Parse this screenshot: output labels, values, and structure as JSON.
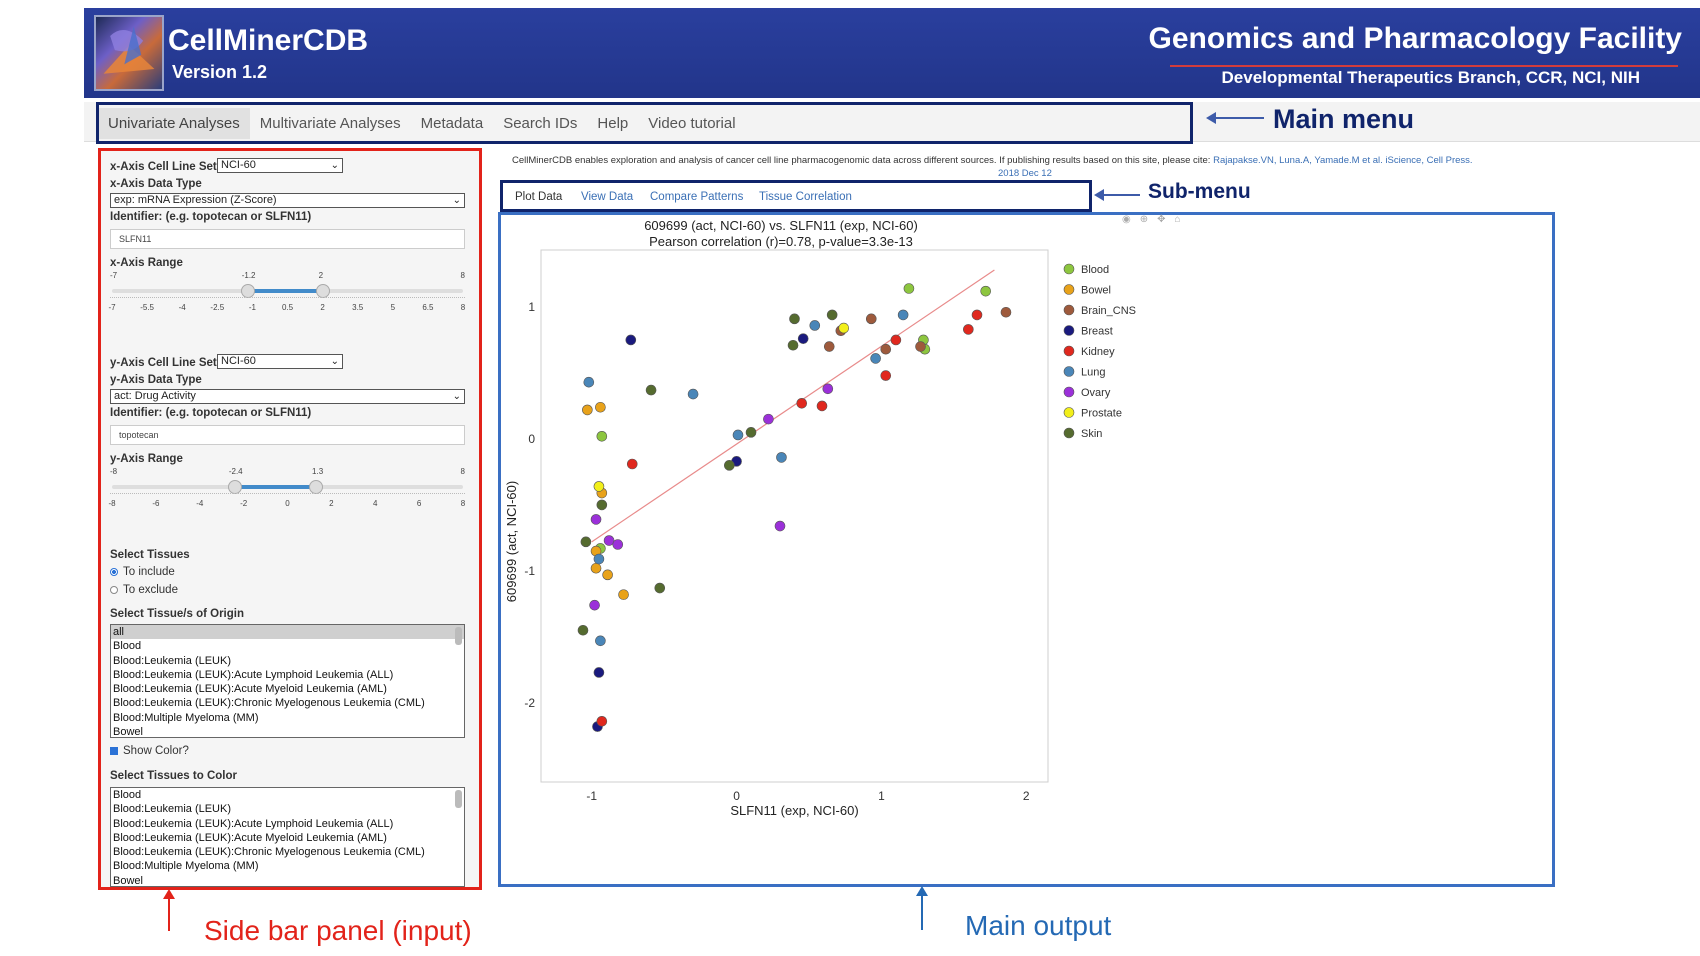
{
  "header": {
    "app_title": "CellMinerCDB",
    "version": "Version 1.2",
    "facility_title": "Genomics and Pharmacology Facility",
    "facility_subtitle": "Developmental Therapeutics Branch, CCR, NCI, NIH"
  },
  "main_menu": {
    "tabs": [
      "Univariate Analyses",
      "Multivariate Analyses",
      "Metadata",
      "Search IDs",
      "Help",
      "Video tutorial"
    ],
    "active_index": 0
  },
  "annotations": {
    "main_menu": "Main menu",
    "sub_menu": "Sub-menu",
    "sidebar": "Side bar panel (input)",
    "main_output": "Main output"
  },
  "sidebar": {
    "x_cellline_label": "x-Axis Cell Line Set",
    "x_cellline_value": "NCI-60",
    "x_datatype_label": "x-Axis Data Type",
    "x_datatype_value": "exp: mRNA Expression (Z-Score)",
    "x_identifier_label": "Identifier: (e.g. topotecan or SLFN11)",
    "x_identifier_value": "SLFN11",
    "x_range_label": "x-Axis Range",
    "x_range": {
      "min": -7,
      "max": 8,
      "low": -1.2,
      "high": 2,
      "min_label": "-7",
      "max_label": "8",
      "low_label": "-1.2",
      "high_label": "2",
      "ticks": [
        "-7",
        "-5.5",
        "-4",
        "-2.5",
        "-1",
        "0.5",
        "2",
        "3.5",
        "5",
        "6.5",
        "8"
      ]
    },
    "y_cellline_label": "y-Axis Cell Line Set",
    "y_cellline_value": "NCI-60",
    "y_datatype_label": "y-Axis Data Type",
    "y_datatype_value": "act: Drug Activity",
    "y_identifier_label": "Identifier: (e.g. topotecan or SLFN11)",
    "y_identifier_value": "topotecan",
    "y_range_label": "y-Axis Range",
    "y_range": {
      "min": -8,
      "max": 8,
      "low": -2.4,
      "high": 1.3,
      "min_label": "-8",
      "max_label": "8",
      "low_label": "-2.4",
      "high_label": "1.3",
      "ticks": [
        "-8",
        "-6",
        "-4",
        "-2",
        "0",
        "2",
        "4",
        "6",
        "8"
      ]
    },
    "select_tissues_label": "Select Tissues",
    "radio_include": "To include",
    "radio_exclude": "To exclude",
    "origin_label": "Select Tissue/s of Origin",
    "origin_items": [
      "all",
      "Blood",
      "Blood:Leukemia (LEUK)",
      "Blood:Leukemia (LEUK):Acute Lymphoid Leukemia (ALL)",
      "Blood:Leukemia (LEUK):Acute Myeloid Leukemia (AML)",
      "Blood:Leukemia (LEUK):Chronic Myelogenous Leukemia (CML)",
      "Blood:Multiple Myeloma (MM)",
      "Bowel"
    ],
    "show_color_label": "Show Color?",
    "color_label": "Select Tissues to Color",
    "color_items": [
      "Blood",
      "Blood:Leukemia (LEUK)",
      "Blood:Leukemia (LEUK):Acute Lymphoid Leukemia (ALL)",
      "Blood:Leukemia (LEUK):Acute Myeloid Leukemia (AML)",
      "Blood:Leukemia (LEUK):Chronic Myelogenous Leukemia (CML)",
      "Blood:Multiple Myeloma (MM)",
      "Bowel"
    ]
  },
  "intro": {
    "text": "CellMinerCDB enables exploration and analysis of cancer cell line pharmacogenomic data across different sources. If publishing results based on this site, please cite: ",
    "citation": "Rajapakse.VN, Luna.A, Yamade.M et al. iScience, Cell Press.",
    "date": "2018 Dec 12"
  },
  "sub_menu": {
    "tabs": [
      "Plot Data",
      "View Data",
      "Compare Patterns",
      "Tissue Correlation"
    ],
    "active_index": 0
  },
  "chart_data": {
    "type": "scatter",
    "title": "609699 (act, NCI-60) vs. SLFN11 (exp, NCI-60)",
    "subtitle": "Pearson correlation (r)=0.78, p-value=3.3e-13",
    "xlabel": "SLFN11 (exp, NCI-60)",
    "ylabel": "609699 (act, NCI-60)",
    "xlim": [
      -1.35,
      2.15
    ],
    "ylim": [
      -2.6,
      1.5
    ],
    "xticks": [
      -1,
      0,
      1,
      2
    ],
    "yticks": [
      -2,
      -1,
      0,
      1
    ],
    "legend_position": "right",
    "trendline": [
      [
        -1.0,
        -0.78
      ],
      [
        1.78,
        1.28
      ]
    ],
    "trendline_color": "#e88b8b",
    "series": [
      {
        "name": "Blood",
        "color": "#8dc63f",
        "points": [
          [
            1.19,
            1.14
          ],
          [
            1.72,
            1.12
          ],
          [
            1.29,
            0.75
          ],
          [
            1.3,
            0.68
          ],
          [
            -0.93,
            0.02
          ],
          [
            -0.94,
            -0.83
          ]
        ]
      },
      {
        "name": "Bowel",
        "color": "#e8a21a",
        "points": [
          [
            -1.03,
            0.22
          ],
          [
            -0.94,
            0.24
          ],
          [
            -0.93,
            -0.41
          ],
          [
            -0.97,
            -0.85
          ],
          [
            -0.97,
            -0.98
          ],
          [
            -0.89,
            -1.03
          ],
          [
            -0.78,
            -1.18
          ]
        ]
      },
      {
        "name": "Brain_CNS",
        "color": "#9e5a3c",
        "points": [
          [
            0.72,
            0.82
          ],
          [
            0.93,
            0.91
          ],
          [
            1.86,
            0.96
          ],
          [
            0.64,
            0.7
          ],
          [
            1.03,
            0.68
          ],
          [
            1.27,
            0.7
          ]
        ]
      },
      {
        "name": "Breast",
        "color": "#1a1a7e",
        "points": [
          [
            -0.73,
            0.75
          ],
          [
            0.46,
            0.76
          ],
          [
            0.0,
            -0.17
          ],
          [
            -0.95,
            -1.77
          ],
          [
            -0.96,
            -2.18
          ]
        ]
      },
      {
        "name": "Kidney",
        "color": "#e0281e",
        "points": [
          [
            1.66,
            0.94
          ],
          [
            1.6,
            0.83
          ],
          [
            1.1,
            0.75
          ],
          [
            1.03,
            0.48
          ],
          [
            0.45,
            0.27
          ],
          [
            0.59,
            0.25
          ],
          [
            -0.72,
            -0.19
          ],
          [
            -0.93,
            -2.14
          ]
        ]
      },
      {
        "name": "Lung",
        "color": "#4a86b8",
        "points": [
          [
            0.54,
            0.86
          ],
          [
            1.15,
            0.94
          ],
          [
            0.96,
            0.61
          ],
          [
            -1.02,
            0.43
          ],
          [
            -0.3,
            0.34
          ],
          [
            0.01,
            0.03
          ],
          [
            0.31,
            -0.14
          ],
          [
            -0.95,
            -0.91
          ],
          [
            -0.94,
            -1.53
          ]
        ]
      },
      {
        "name": "Ovary",
        "color": "#9b30d9",
        "points": [
          [
            0.63,
            0.38
          ],
          [
            0.22,
            0.15
          ],
          [
            0.3,
            -0.66
          ],
          [
            -0.97,
            -0.61
          ],
          [
            -0.88,
            -0.77
          ],
          [
            -0.82,
            -0.8
          ],
          [
            -0.98,
            -1.26
          ]
        ]
      },
      {
        "name": "Prostate",
        "color": "#f2ef1a",
        "points": [
          [
            0.74,
            0.84
          ],
          [
            -0.95,
            -0.36
          ]
        ]
      },
      {
        "name": "Skin",
        "color": "#556b2f",
        "points": [
          [
            0.4,
            0.91
          ],
          [
            0.66,
            0.94
          ],
          [
            0.39,
            0.71
          ],
          [
            -0.59,
            0.37
          ],
          [
            0.1,
            0.05
          ],
          [
            -0.05,
            -0.2
          ],
          [
            -0.93,
            -0.5
          ],
          [
            -1.04,
            -0.78
          ],
          [
            -0.53,
            -1.13
          ],
          [
            -1.06,
            -1.45
          ]
        ]
      }
    ]
  }
}
